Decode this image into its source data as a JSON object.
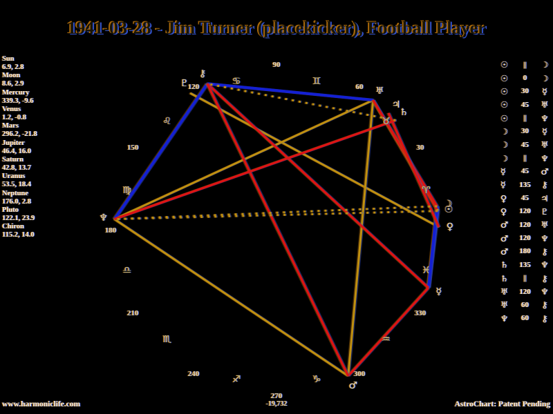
{
  "title": "1941-03-28 - Jim Turner (placekicker), Football Player",
  "footer": {
    "website": "www.harmoniclife.com",
    "center_value": "-19,732",
    "brand": "AstroChart: Patent Pending"
  },
  "chart_data": {
    "type": "astro-harmonic-wheel",
    "title": "1941-03-28 - Jim Turner (placekicker), Football Player",
    "orientation": {
      "zero_degrees": "right",
      "direction": "counterclockwise"
    },
    "rim_degree_labels": [
      30,
      60,
      90,
      120,
      150,
      180,
      210,
      240,
      270,
      300,
      330
    ],
    "zodiac_signs": [
      {
        "name": "aries",
        "glyph": "♈",
        "mid_degree": 15
      },
      {
        "name": "taurus",
        "glyph": "♉",
        "mid_degree": 45
      },
      {
        "name": "gemini",
        "glyph": "♊",
        "mid_degree": 75
      },
      {
        "name": "cancer",
        "glyph": "♋",
        "mid_degree": 105
      },
      {
        "name": "leo",
        "glyph": "♌",
        "mid_degree": 135
      },
      {
        "name": "virgo",
        "glyph": "♍",
        "mid_degree": 165
      },
      {
        "name": "libra",
        "glyph": "♎",
        "mid_degree": 195
      },
      {
        "name": "scorpio",
        "glyph": "♏",
        "mid_degree": 225
      },
      {
        "name": "sagittarius",
        "glyph": "♐",
        "mid_degree": 255
      },
      {
        "name": "capricorn",
        "glyph": "♑",
        "mid_degree": 285
      },
      {
        "name": "aquarius",
        "glyph": "♒",
        "mid_degree": 315
      },
      {
        "name": "pisces",
        "glyph": "♓",
        "mid_degree": 345
      }
    ],
    "planets": [
      {
        "name": "Sun",
        "glyph": "☉",
        "longitude": 6.9,
        "declination": 2.8,
        "value_text": "6.9, 2.8"
      },
      {
        "name": "Moon",
        "glyph": "☽",
        "longitude": 8.6,
        "declination": 2.9,
        "value_text": "8.6, 2.9"
      },
      {
        "name": "Mercury",
        "glyph": "☿",
        "longitude": 339.3,
        "declination": -9.6,
        "value_text": "339.3, -9.6"
      },
      {
        "name": "Venus",
        "glyph": "♀",
        "longitude": 1.2,
        "declination": -0.8,
        "value_text": "1.2, -0.8"
      },
      {
        "name": "Mars",
        "glyph": "♂",
        "longitude": 296.2,
        "declination": -21.8,
        "value_text": "296.2, -21.8"
      },
      {
        "name": "Jupiter",
        "glyph": "♃",
        "longitude": 46.4,
        "declination": 16.0,
        "value_text": "46.4, 16.0"
      },
      {
        "name": "Saturn",
        "glyph": "♄",
        "longitude": 42.8,
        "declination": 13.7,
        "value_text": "42.8, 13.7"
      },
      {
        "name": "Uranus",
        "glyph": "♅",
        "longitude": 53.5,
        "declination": 18.4,
        "value_text": "53.5, 18.4"
      },
      {
        "name": "Neptune",
        "glyph": "♆",
        "longitude": 176.0,
        "declination": 2.8,
        "value_text": "176.0, 2.8"
      },
      {
        "name": "Pluto",
        "glyph": "♇",
        "longitude": 122.1,
        "declination": 23.9,
        "value_text": "122.1, 23.9"
      },
      {
        "name": "Chiron",
        "glyph": "⚷",
        "longitude": 115.2,
        "declination": 14.0,
        "value_text": "115.2, 14.0"
      }
    ],
    "aspects": [
      {
        "p1": "Sun",
        "aspect": "||",
        "p2": "Moon",
        "line": "dotted"
      },
      {
        "p1": "Sun",
        "aspect": "0",
        "p2": "Moon",
        "line": "blue"
      },
      {
        "p1": "Sun",
        "aspect": "30",
        "p2": "Mercury",
        "line": "blue"
      },
      {
        "p1": "Sun",
        "aspect": "45",
        "p2": "Uranus",
        "line": "red"
      },
      {
        "p1": "Sun",
        "aspect": "||",
        "p2": "Neptune",
        "line": "dotted"
      },
      {
        "p1": "Moon",
        "aspect": "30",
        "p2": "Mercury",
        "line": "blue"
      },
      {
        "p1": "Moon",
        "aspect": "45",
        "p2": "Uranus",
        "line": "red"
      },
      {
        "p1": "Moon",
        "aspect": "||",
        "p2": "Neptune",
        "line": "dotted"
      },
      {
        "p1": "Mercury",
        "aspect": "45",
        "p2": "Mars",
        "line": "red"
      },
      {
        "p1": "Mercury",
        "aspect": "135",
        "p2": "Chiron",
        "line": "red"
      },
      {
        "p1": "Venus",
        "aspect": "45",
        "p2": "Jupiter",
        "line": "red"
      },
      {
        "p1": "Venus",
        "aspect": "120",
        "p2": "Pluto",
        "line": "gold"
      },
      {
        "p1": "Mars",
        "aspect": "120",
        "p2": "Uranus",
        "line": "gold"
      },
      {
        "p1": "Mars",
        "aspect": "120",
        "p2": "Neptune",
        "line": "gold"
      },
      {
        "p1": "Mars",
        "aspect": "180",
        "p2": "Chiron",
        "line": "red"
      },
      {
        "p1": "Saturn",
        "aspect": "135",
        "p2": "Neptune",
        "line": "red"
      },
      {
        "p1": "Saturn",
        "aspect": "||",
        "p2": "Chiron",
        "line": "dotted"
      },
      {
        "p1": "Uranus",
        "aspect": "120",
        "p2": "Neptune",
        "line": "gold"
      },
      {
        "p1": "Uranus",
        "aspect": "60",
        "p2": "Chiron",
        "line": "blue"
      },
      {
        "p1": "Neptune",
        "aspect": "60",
        "p2": "Chiron",
        "line": "blue"
      }
    ],
    "colors": {
      "background": "#000000",
      "blue_line": "#1420d2",
      "red_line": "#dc1414",
      "gold_line": "#c09010",
      "chart_text": "#d8cfae",
      "column_text": "#efe9da",
      "fringe_orange": "#a8680a",
      "fringe_blue": "#3a55c8"
    }
  }
}
